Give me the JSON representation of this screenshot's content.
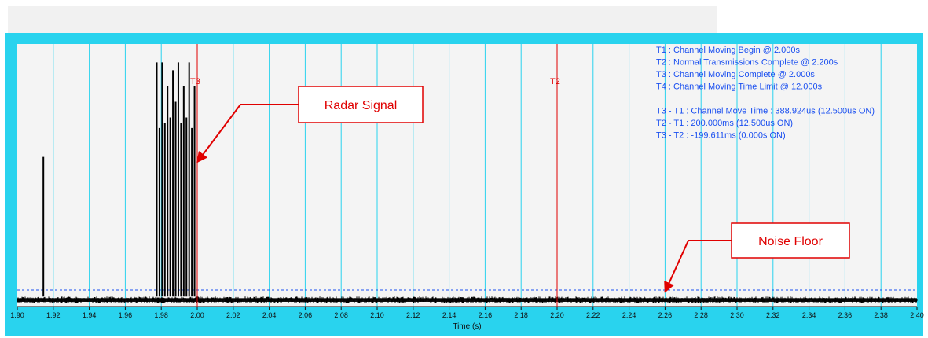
{
  "chart_data": {
    "type": "line",
    "xlabel": "Time (s)",
    "xlim": [
      1.9,
      2.4
    ],
    "ylim": [
      0,
      1
    ],
    "x_ticks": [
      "1.90",
      "1.92",
      "1.94",
      "1.96",
      "1.98",
      "2.00",
      "2.02",
      "2.04",
      "2.06",
      "2.08",
      "2.10",
      "2.12",
      "2.14",
      "2.16",
      "2.18",
      "2.20",
      "2.22",
      "2.24",
      "2.26",
      "2.28",
      "2.30",
      "2.32",
      "2.34",
      "2.36",
      "2.38",
      "2.40"
    ],
    "noise_floor_level": 0.063,
    "noise_band": [
      0.012,
      0.038
    ],
    "pulses": [
      {
        "x": 1.9145,
        "y": 0.57
      },
      {
        "x": 1.9775,
        "y": 0.93
      },
      {
        "x": 1.979,
        "y": 0.68
      },
      {
        "x": 1.9805,
        "y": 0.93
      },
      {
        "x": 1.982,
        "y": 0.7
      },
      {
        "x": 1.9835,
        "y": 0.84
      },
      {
        "x": 1.985,
        "y": 0.72
      },
      {
        "x": 1.9865,
        "y": 0.9
      },
      {
        "x": 1.988,
        "y": 0.78
      },
      {
        "x": 1.9895,
        "y": 0.93
      },
      {
        "x": 1.991,
        "y": 0.7
      },
      {
        "x": 1.9925,
        "y": 0.84
      },
      {
        "x": 1.994,
        "y": 0.72
      },
      {
        "x": 1.9955,
        "y": 0.93
      },
      {
        "x": 1.997,
        "y": 0.68
      },
      {
        "x": 1.9985,
        "y": 0.84
      }
    ],
    "markers": [
      {
        "label": "T3",
        "x": 2.0
      },
      {
        "label": "T2",
        "x": 2.2
      }
    ],
    "info_lines": [
      "T1 : Channel Moving Begin @ 2.000s",
      "T2 : Normal Transmissions Complete @ 2.200s",
      "T3 : Channel Moving Complete @ 2.000s",
      "T4 : Channel Moving Time Limit @ 12.000s",
      "",
      "T3 - T1 : Channel Move Time : 388.924us (12.500us ON)",
      "T2 - T1 : 200.000ms (12.500us ON)",
      "T3 - T2 : -199.611ms (0.000s ON)"
    ],
    "annotations": [
      {
        "text": "Radar Signal",
        "points_to_x": 2.0,
        "points_to_y": 0.55
      },
      {
        "text": "Noise Floor",
        "points_to_x": 2.26,
        "points_to_y": 0.038
      }
    ]
  },
  "colors": {
    "frame": "#29d3ee",
    "plot_bg": "#f4f4f4",
    "grid": "#29d3ee",
    "marker": "#e00000",
    "info_text": "#1a4ff0",
    "signal": "#000000",
    "threshold": "#1a4ff0"
  }
}
